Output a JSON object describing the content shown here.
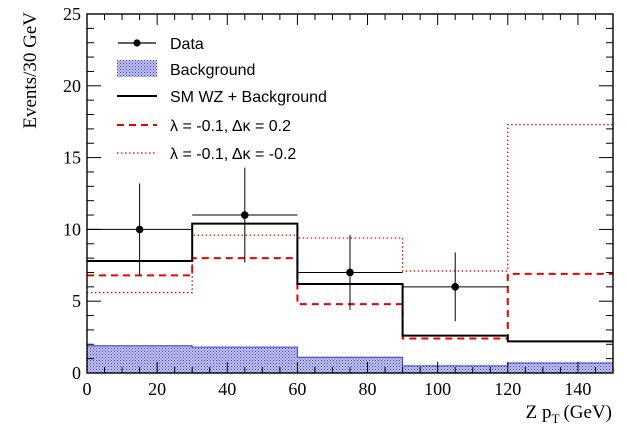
{
  "chart_data": {
    "type": "histogram",
    "xlabel": "Z p",
    "xlabel_subscript": "T",
    "xlabel_unit": "(GeV)",
    "ylabel": "Events/30 GeV",
    "xlim": [
      0,
      150
    ],
    "ylim": [
      0,
      25
    ],
    "x_ticks": [
      0,
      20,
      40,
      60,
      80,
      100,
      120,
      140
    ],
    "y_ticks": [
      0,
      5,
      10,
      15,
      20,
      25
    ],
    "bin_edges": [
      0,
      30,
      60,
      90,
      120,
      150
    ],
    "legend_position": "top-left",
    "legend": {
      "data": "Data",
      "background": "Background",
      "sm": "SM WZ + Background",
      "dashed": "λ = -0.1, Δκ =  0.2",
      "dotted": "λ = -0.1, Δκ = -0.2"
    },
    "series": [
      {
        "name": "Data",
        "style": "points",
        "color": "#000000",
        "x": [
          15,
          45,
          75,
          105
        ],
        "y": [
          10,
          11,
          7,
          6
        ],
        "yerr_low": [
          3.2,
          3.3,
          2.6,
          2.4
        ],
        "yerr_high": [
          3.2,
          3.3,
          2.6,
          2.4
        ]
      },
      {
        "name": "Background",
        "style": "filled",
        "color": "#3a3acc",
        "values": [
          1.9,
          1.8,
          1.1,
          0.5,
          0.7
        ]
      },
      {
        "name": "SM WZ + Background",
        "style": "solid",
        "color": "#000000",
        "values": [
          7.8,
          10.4,
          6.2,
          2.6,
          2.2
        ]
      },
      {
        "name": "λ = -0.1, Δκ =  0.2",
        "style": "dashed",
        "color": "#ee0000",
        "values": [
          6.8,
          8.0,
          4.8,
          2.4,
          6.9
        ]
      },
      {
        "name": "λ = -0.1, Δκ = -0.2",
        "style": "dotted",
        "color": "#ee0000",
        "values": [
          5.6,
          9.6,
          9.4,
          7.1,
          17.3
        ]
      }
    ]
  }
}
